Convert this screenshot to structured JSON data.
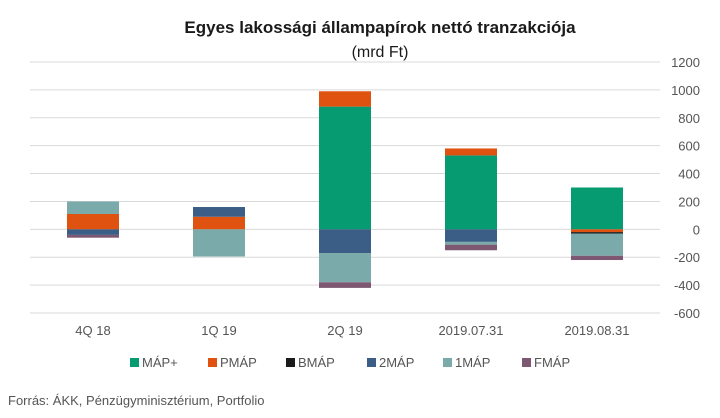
{
  "chart_data": {
    "type": "bar",
    "stacked": true,
    "title": "Egyes lakossági állampapírok nettó tranzakciója",
    "subtitle": "(mrd Ft)",
    "categories": [
      "4Q 18",
      "1Q 19",
      "2Q 19",
      "2019.07.31",
      "2019.08.31"
    ],
    "ylim": [
      -600,
      1200
    ],
    "yticks": [
      -600,
      -400,
      -200,
      0,
      200,
      400,
      600,
      800,
      1000,
      1200
    ],
    "y_axis_position": "right",
    "grid": true,
    "legend_position": "bottom",
    "series": [
      {
        "name": "MÁP+",
        "color": "#079b72",
        "values": [
          0,
          0,
          880,
          530,
          300
        ]
      },
      {
        "name": "PMÁP",
        "color": "#e0520f",
        "values": [
          110,
          90,
          110,
          50,
          -20
        ]
      },
      {
        "name": "BMÁP",
        "color": "#1a1a1a",
        "values": [
          0,
          0,
          0,
          0,
          -10
        ]
      },
      {
        "name": "2MÁP",
        "color": "#3a5e86",
        "values": [
          -40,
          70,
          -170,
          -90,
          0
        ]
      },
      {
        "name": "1MÁP",
        "color": "#7aaaaa",
        "values": [
          90,
          -195,
          -210,
          -20,
          -160
        ]
      },
      {
        "name": "FMÁP",
        "color": "#7e5872",
        "values": [
          -20,
          0,
          -40,
          -40,
          -30
        ]
      }
    ]
  },
  "source": "Forrás: ÁKK, Pénzügyminisztérium, Portfolio"
}
